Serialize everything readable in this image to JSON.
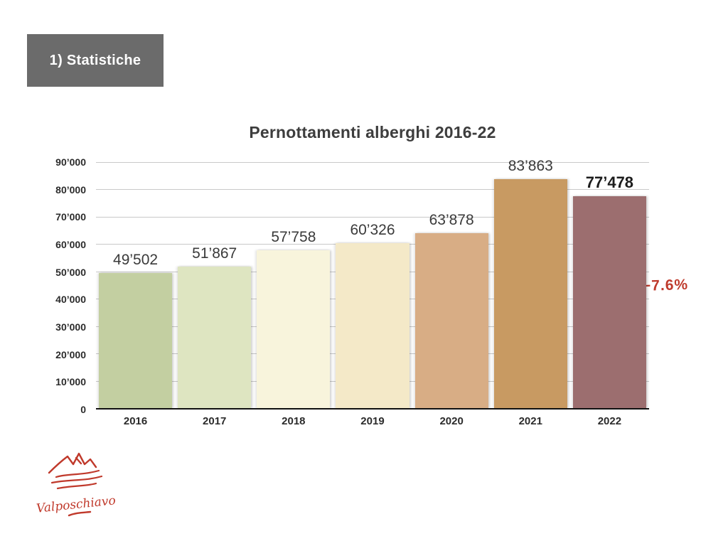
{
  "header": {
    "section_label": "1) Statistiche",
    "box_color": "#6b6b6b"
  },
  "chart_data": {
    "type": "bar",
    "title": "Pernottamenti alberghi 2016-22",
    "categories": [
      "2016",
      "2017",
      "2018",
      "2019",
      "2020",
      "2021",
      "2022"
    ],
    "values": [
      49502,
      51867,
      57758,
      60326,
      63878,
      83863,
      77478
    ],
    "value_labels": [
      "49’502",
      "51’867",
      "57’758",
      "60’326",
      "63’878",
      "83’863",
      "77’478"
    ],
    "bar_colors": [
      "#c3cfa1",
      "#dee5c1",
      "#f8f4dc",
      "#f4e9c8",
      "#d8ad85",
      "#c89a62",
      "#9c6e6f"
    ],
    "emphasized_index": 6,
    "xlabel": "",
    "ylabel": "",
    "ylim": [
      0,
      90000
    ],
    "grid": true,
    "legend": "none",
    "y_ticks": [
      {
        "value": 0,
        "label": "0"
      },
      {
        "value": 10000,
        "label": "10’000"
      },
      {
        "value": 20000,
        "label": "20’000"
      },
      {
        "value": 30000,
        "label": "30’000"
      },
      {
        "value": 40000,
        "label": "40’000"
      },
      {
        "value": 50000,
        "label": "50’000"
      },
      {
        "value": 60000,
        "label": "60’000"
      },
      {
        "value": 70000,
        "label": "70’000"
      },
      {
        "value": 80000,
        "label": "80’000"
      },
      {
        "value": 90000,
        "label": "90’000"
      }
    ],
    "annotation": {
      "text": "−7.6%",
      "color": "#bf3a2c"
    }
  },
  "logo": {
    "text": "Valposchiavo",
    "color": "#c0392b"
  }
}
